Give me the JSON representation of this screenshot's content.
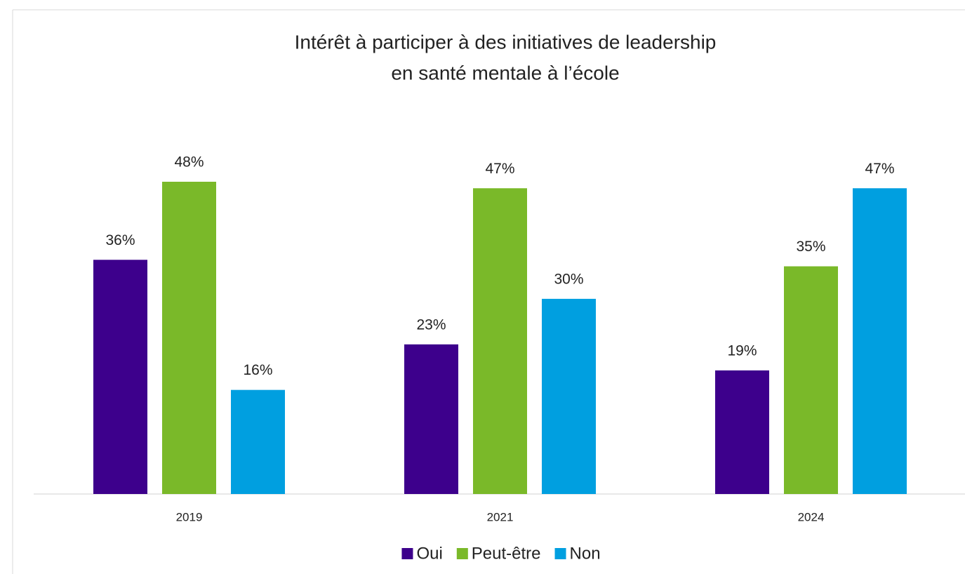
{
  "chart_data": {
    "type": "bar",
    "title": [
      "Intérêt à participer à des initiatives de leadership",
      "en santé mentale à l’école"
    ],
    "categories": [
      "2019",
      "2021",
      "2024"
    ],
    "series": [
      {
        "name": "Oui",
        "color": "#3d008c",
        "values": [
          36,
          23,
          19
        ],
        "value_labels": [
          "36%",
          "23%",
          "19%"
        ]
      },
      {
        "name": "Peut-être",
        "color": "#7ab929",
        "values": [
          48,
          47,
          35
        ],
        "value_labels": [
          "48%",
          "47%",
          "35%"
        ]
      },
      {
        "name": "Non",
        "color": "#009fe0",
        "values": [
          16,
          30,
          47
        ],
        "value_labels": [
          "16%",
          "30%",
          "47%"
        ]
      }
    ],
    "legend": "bottom"
  }
}
